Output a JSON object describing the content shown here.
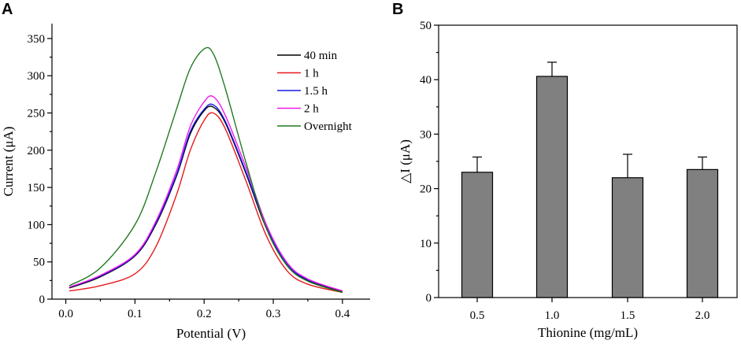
{
  "chart_data": [
    {
      "panel": "A",
      "type": "line",
      "xlabel": "Potential (V)",
      "ylabel": "Current (μA)",
      "xlim": [
        -0.02,
        0.44
      ],
      "ylim": [
        0,
        370
      ],
      "x_ticks": [
        0.0,
        0.1,
        0.2,
        0.3,
        0.4
      ],
      "x_tick_labels": [
        "0.0",
        "0.1",
        "0.2",
        "0.3",
        "0.4"
      ],
      "y_ticks": [
        0,
        50,
        100,
        150,
        200,
        250,
        300,
        350
      ],
      "y_tick_labels": [
        "0",
        "50",
        "100",
        "150",
        "200",
        "250",
        "300",
        "350"
      ],
      "legend_position": "top-right",
      "series": [
        {
          "name": "40 min",
          "color": "#000000",
          "x": [
            0.005,
            0.05,
            0.1,
            0.13,
            0.16,
            0.18,
            0.2,
            0.213,
            0.23,
            0.26,
            0.29,
            0.32,
            0.35,
            0.4
          ],
          "y": [
            15,
            30,
            58,
            100,
            165,
            222,
            253,
            258,
            238,
            170,
            95,
            45,
            25,
            10
          ]
        },
        {
          "name": "1 h",
          "color": "#e8191c",
          "x": [
            0.005,
            0.05,
            0.1,
            0.13,
            0.16,
            0.18,
            0.2,
            0.213,
            0.23,
            0.26,
            0.29,
            0.32,
            0.35,
            0.4
          ],
          "y": [
            11,
            18,
            34,
            70,
            140,
            200,
            240,
            250,
            230,
            160,
            85,
            38,
            20,
            9
          ]
        },
        {
          "name": "1.5 h",
          "color": "#1a1ae6",
          "x": [
            0.005,
            0.05,
            0.1,
            0.13,
            0.16,
            0.18,
            0.2,
            0.213,
            0.23,
            0.26,
            0.29,
            0.32,
            0.35,
            0.4
          ],
          "y": [
            16,
            31,
            59,
            102,
            167,
            225,
            255,
            261,
            240,
            172,
            97,
            47,
            26,
            11
          ]
        },
        {
          "name": "2 h",
          "color": "#ee1aee",
          "x": [
            0.005,
            0.05,
            0.1,
            0.13,
            0.16,
            0.18,
            0.2,
            0.213,
            0.23,
            0.26,
            0.29,
            0.32,
            0.35,
            0.4
          ],
          "y": [
            16,
            32,
            60,
            104,
            172,
            232,
            265,
            272,
            248,
            178,
            100,
            49,
            27,
            11
          ]
        },
        {
          "name": "Overnight",
          "color": "#1f7a1f",
          "x": [
            0.005,
            0.05,
            0.1,
            0.13,
            0.16,
            0.18,
            0.2,
            0.213,
            0.23,
            0.26,
            0.29,
            0.32,
            0.35,
            0.4
          ],
          "y": [
            18,
            42,
            100,
            170,
            255,
            310,
            336,
            330,
            285,
            185,
            95,
            45,
            24,
            9
          ]
        }
      ]
    },
    {
      "panel": "B",
      "type": "bar",
      "xlabel": "Thionine (mg/mL)",
      "ylabel": "△I (μA)",
      "ylim": [
        0,
        50
      ],
      "y_ticks": [
        0,
        10,
        20,
        30,
        40,
        50
      ],
      "y_tick_labels": [
        "0",
        "10",
        "20",
        "30",
        "40",
        "50"
      ],
      "categories": [
        "0.5",
        "1.0",
        "1.5",
        "2.0"
      ],
      "values": [
        23.0,
        40.6,
        22.0,
        23.5
      ],
      "errors": [
        2.8,
        2.6,
        4.3,
        2.3
      ],
      "bar_color": "#808080"
    }
  ]
}
